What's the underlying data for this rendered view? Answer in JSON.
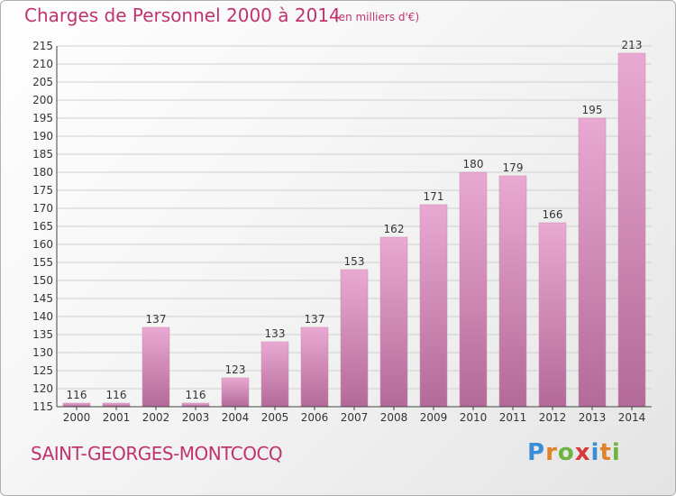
{
  "header": {
    "title": "Charges de Personnel 2000 à 2014",
    "subtitle": "(en milliers d'€)"
  },
  "footer": {
    "commune": "SAINT-GEORGES-MONTCOCQ",
    "logo_text": "Proxiti",
    "logo_letters": [
      {
        "ch": "P",
        "color": "#3a8fd4"
      },
      {
        "ch": "r",
        "color": "#e0822a"
      },
      {
        "ch": "o",
        "color": "#6cb33f"
      },
      {
        "ch": "x",
        "color": "#d83a3a"
      },
      {
        "ch": "i",
        "color": "#3a8fd4"
      },
      {
        "ch": "t",
        "color": "#e0822a"
      },
      {
        "ch": "i",
        "color": "#6cb33f"
      }
    ]
  },
  "colors": {
    "accent": "#c0336e",
    "bar_top": "#e9a9d2",
    "bar_bottom": "#b36a98",
    "grid": "#cfcfcf",
    "axis_text": "#333333"
  },
  "chart_data": {
    "type": "bar",
    "categories": [
      "2000",
      "2001",
      "2002",
      "2003",
      "2004",
      "2005",
      "2006",
      "2007",
      "2008",
      "2009",
      "2010",
      "2011",
      "2012",
      "2013",
      "2014"
    ],
    "values": [
      116,
      116,
      137,
      116,
      123,
      133,
      137,
      153,
      162,
      171,
      180,
      179,
      166,
      195,
      213
    ],
    "value_labels": [
      "116",
      "116",
      "137",
      "116",
      "123",
      "133",
      "137",
      "153",
      "162",
      "171",
      "180",
      "179",
      "166",
      "195",
      "213"
    ],
    "ylim": [
      115,
      215
    ],
    "yticks": [
      "115",
      "120",
      "125",
      "130",
      "135",
      "140",
      "145",
      "150",
      "155",
      "160",
      "165",
      "170",
      "175",
      "180",
      "185",
      "190",
      "195",
      "200",
      "205",
      "210",
      "215"
    ],
    "grid": true
  }
}
